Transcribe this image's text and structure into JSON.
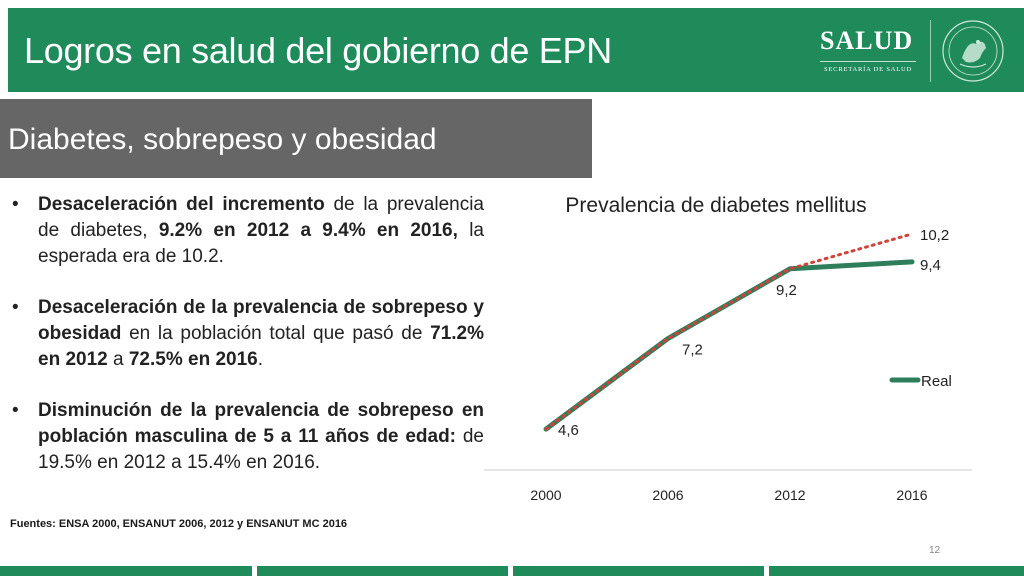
{
  "header": {
    "title": "Logros en salud del gobierno de EPN",
    "logo_text": "SALUD",
    "logo_subtext": "SECRETARÍA DE SALUD",
    "seal_icon": "mexico-seal-icon"
  },
  "subheader": {
    "title": "Diabetes, sobrepeso y obesidad"
  },
  "bullets": [
    {
      "runs": [
        {
          "text": "Desaceleración del incremento",
          "bold": true
        },
        {
          "text": " de la prevalencia de diabetes, ",
          "bold": false
        },
        {
          "text": "9.2% en 2012 a 9.4% en 2016,",
          "bold": true
        },
        {
          "text": " la esperada era de 10.2.",
          "bold": false
        }
      ]
    },
    {
      "runs": [
        {
          "text": "Desaceleración de la prevalencia de sobrepeso y obesidad",
          "bold": true
        },
        {
          "text": " en la población total que pasó de ",
          "bold": false
        },
        {
          "text": "71.2% en 2012",
          "bold": true
        },
        {
          "text": "  a ",
          "bold": false
        },
        {
          "text": "72.5% en 2016",
          "bold": true
        },
        {
          "text": ".",
          "bold": false
        }
      ]
    },
    {
      "runs": [
        {
          "text": "Disminución de la prevalencia de sobrepeso en población masculina de 5 a 11 años de edad:",
          "bold": true
        },
        {
          "text": " de 19.5% en 2012 a 15.4% en 2016.",
          "bold": false
        }
      ]
    }
  ],
  "sources": "Fuentes: ENSA 2000, ENSANUT 2006, 2012 y ENSANUT MC 2016",
  "page_number": "12",
  "chart_data": {
    "type": "line",
    "title": "Prevalencia de diabetes mellitus",
    "categories": [
      "2000",
      "2006",
      "2012",
      "2016"
    ],
    "series": [
      {
        "name": "Real",
        "values": [
          4.6,
          7.2,
          9.2,
          9.4
        ],
        "color": "#2e7d5b",
        "style": "solid"
      },
      {
        "values": [
          4.6,
          7.2,
          9.2,
          10.2
        ],
        "color": "#d0433a",
        "style": "dotted"
      }
    ],
    "data_labels": [
      "4,6",
      "7,2",
      "9,2",
      "9,4",
      "10,2"
    ],
    "ylim": [
      4,
      10.6
    ],
    "legend_position": "right",
    "grid": false
  },
  "colors": {
    "brand_green": "#1f8a5a",
    "subheader_gray": "#666666",
    "real_line": "#2e7d5b",
    "expected_line": "#d0433a"
  }
}
